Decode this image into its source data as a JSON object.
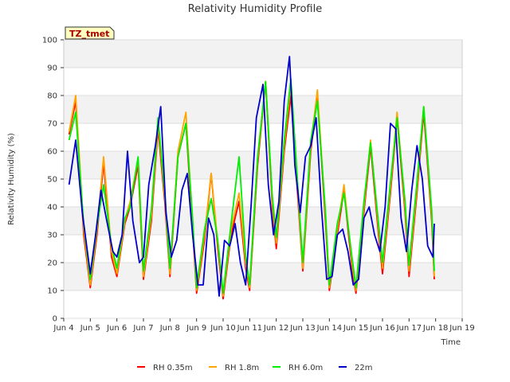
{
  "chart_data": {
    "type": "line",
    "title": "Relativity Humidity Profile",
    "xlabel": "Time",
    "ylabel": "Relativity Humidity (%)",
    "station_label": "TZ_tmet",
    "xlim": [
      4,
      19
    ],
    "ylim": [
      0,
      100
    ],
    "x_ticks": [
      4,
      5,
      6,
      7,
      8,
      9,
      10,
      11,
      12,
      13,
      14,
      15,
      16,
      17,
      18,
      19
    ],
    "x_tick_labels": [
      "Jun 4",
      "Jun 5",
      "Jun 6",
      "Jun 7",
      "Jun 8",
      "Jun 9",
      "Jun 10",
      "Jun 11",
      "Jun 12",
      "Jun 13",
      "Jun 14",
      "Jun 15",
      "Jun 16",
      "Jun 17",
      "Jun 18",
      "Jun 19"
    ],
    "y_ticks": [
      0,
      10,
      20,
      30,
      40,
      50,
      60,
      70,
      80,
      90,
      100
    ],
    "y_tick_labels": [
      "0",
      "10",
      "20",
      "30",
      "40",
      "50",
      "60",
      "70",
      "80",
      "90",
      "100"
    ],
    "legend_position": "bottom",
    "series": [
      {
        "name": "RH 0.35m",
        "color": "#ff0000",
        "x": [
          4.2,
          4.45,
          4.75,
          5.0,
          5.25,
          5.5,
          5.8,
          6.0,
          6.3,
          6.5,
          6.8,
          7.0,
          7.3,
          7.55,
          7.8,
          8.0,
          8.3,
          8.6,
          8.85,
          9.0,
          9.3,
          9.55,
          9.8,
          10.0,
          10.3,
          10.6,
          10.85,
          11.0,
          11.3,
          11.6,
          11.85,
          12.0,
          12.3,
          12.55,
          12.85,
          13.0,
          13.3,
          13.55,
          13.85,
          14.0,
          14.3,
          14.55,
          14.85,
          15.0,
          15.3,
          15.55,
          15.85,
          16.0,
          16.3,
          16.55,
          16.85,
          17.0,
          17.3,
          17.55,
          17.85,
          17.95
        ],
        "values": [
          66,
          78,
          30,
          11,
          30,
          56,
          22,
          15,
          34,
          40,
          55,
          14,
          35,
          68,
          42,
          15,
          58,
          70,
          32,
          9,
          28,
          52,
          25,
          7,
          30,
          42,
          18,
          10,
          55,
          85,
          40,
          25,
          60,
          80,
          38,
          17,
          60,
          80,
          35,
          10,
          30,
          46,
          18,
          9,
          38,
          62,
          30,
          16,
          45,
          72,
          38,
          15,
          45,
          74,
          35,
          14
        ]
      },
      {
        "name": "RH 1.8m",
        "color": "#ffa500",
        "x": [
          4.2,
          4.45,
          4.75,
          5.0,
          5.25,
          5.5,
          5.8,
          6.0,
          6.3,
          6.5,
          6.8,
          7.0,
          7.3,
          7.55,
          7.8,
          8.0,
          8.3,
          8.6,
          8.85,
          9.0,
          9.3,
          9.55,
          9.8,
          10.0,
          10.3,
          10.6,
          10.85,
          11.0,
          11.3,
          11.6,
          11.85,
          12.0,
          12.3,
          12.55,
          12.85,
          13.0,
          13.3,
          13.55,
          13.85,
          14.0,
          14.3,
          14.55,
          14.85,
          15.0,
          15.3,
          15.55,
          15.85,
          16.0,
          16.3,
          16.55,
          16.85,
          17.0,
          17.3,
          17.55,
          17.85,
          17.95
        ],
        "values": [
          67,
          80,
          32,
          12,
          32,
          58,
          24,
          16,
          35,
          42,
          57,
          15,
          37,
          70,
          44,
          16,
          60,
          74,
          34,
          10,
          30,
          52,
          27,
          8,
          32,
          45,
          20,
          11,
          57,
          85,
          42,
          27,
          62,
          84,
          40,
          18,
          62,
          82,
          37,
          11,
          32,
          48,
          20,
          10,
          40,
          64,
          32,
          18,
          47,
          74,
          40,
          17,
          47,
          76,
          37,
          15
        ]
      },
      {
        "name": "RH 6.0m",
        "color": "#00ee00",
        "x": [
          4.2,
          4.45,
          4.75,
          5.0,
          5.25,
          5.5,
          5.8,
          6.0,
          6.3,
          6.5,
          6.8,
          7.0,
          7.3,
          7.55,
          7.8,
          8.0,
          8.3,
          8.6,
          8.85,
          9.0,
          9.3,
          9.55,
          9.8,
          10.0,
          10.3,
          10.6,
          10.85,
          11.0,
          11.3,
          11.6,
          11.85,
          12.0,
          12.3,
          12.55,
          12.85,
          13.0,
          13.3,
          13.55,
          13.85,
          14.0,
          14.3,
          14.55,
          14.85,
          15.0,
          15.3,
          15.55,
          15.85,
          16.0,
          16.3,
          16.55,
          16.85,
          17.0,
          17.3,
          17.55,
          17.85,
          17.95
        ],
        "values": [
          64,
          74,
          34,
          14,
          33,
          48,
          26,
          18,
          36,
          40,
          58,
          17,
          39,
          72,
          45,
          18,
          58,
          70,
          36,
          11,
          32,
          43,
          28,
          9,
          34,
          58,
          22,
          12,
          58,
          85,
          44,
          29,
          64,
          86,
          42,
          20,
          64,
          78,
          39,
          12,
          34,
          45,
          22,
          11,
          42,
          63,
          34,
          20,
          49,
          72,
          42,
          19,
          49,
          76,
          39,
          17
        ]
      },
      {
        "name": "22m",
        "color": "#0000cc",
        "x": [
          4.2,
          4.45,
          4.7,
          5.0,
          5.2,
          5.4,
          5.6,
          5.85,
          6.0,
          6.2,
          6.4,
          6.6,
          6.85,
          7.0,
          7.2,
          7.45,
          7.65,
          7.85,
          8.05,
          8.25,
          8.45,
          8.65,
          8.85,
          9.05,
          9.25,
          9.45,
          9.65,
          9.85,
          10.05,
          10.25,
          10.45,
          10.65,
          10.85,
          11.05,
          11.25,
          11.5,
          11.7,
          11.9,
          12.1,
          12.3,
          12.5,
          12.7,
          12.9,
          13.1,
          13.3,
          13.5,
          13.7,
          13.9,
          14.1,
          14.3,
          14.5,
          14.7,
          14.9,
          15.1,
          15.3,
          15.5,
          15.7,
          15.9,
          16.1,
          16.3,
          16.5,
          16.7,
          16.9,
          17.1,
          17.3,
          17.5,
          17.7,
          17.9,
          17.95
        ],
        "values": [
          48,
          64,
          38,
          16,
          30,
          46,
          36,
          24,
          22,
          30,
          60,
          35,
          20,
          22,
          48,
          62,
          76,
          38,
          22,
          28,
          46,
          52,
          30,
          12,
          12,
          36,
          30,
          8,
          28,
          26,
          34,
          20,
          12,
          40,
          72,
          84,
          48,
          30,
          42,
          78,
          94,
          55,
          38,
          58,
          62,
          72,
          40,
          14,
          15,
          30,
          32,
          24,
          12,
          14,
          36,
          40,
          30,
          24,
          40,
          70,
          68,
          36,
          24,
          46,
          62,
          50,
          26,
          22,
          34
        ]
      }
    ]
  }
}
